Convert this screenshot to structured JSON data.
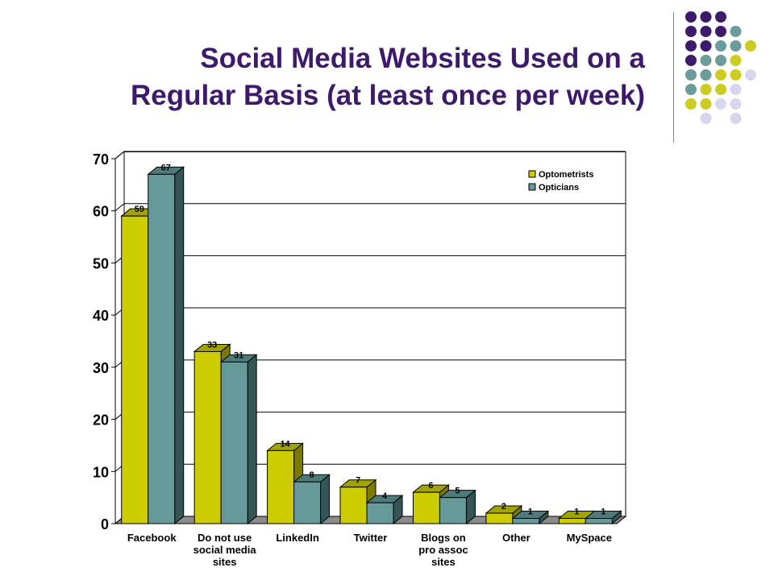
{
  "slide": {
    "title_line1": "Social Media Websites Used on a",
    "title_line2": "Regular Basis (at least once per week)"
  },
  "colors": {
    "title": "#3d1a6b",
    "optometrists_front": "#cccc00",
    "optometrists_top": "#a3a300",
    "optometrists_side": "#7a7a00",
    "opticians_front": "#669999",
    "opticians_top": "#4f7a7a",
    "opticians_side": "#335555",
    "dot_purple": "#3d1a6b",
    "dot_teal": "#6b9b9b",
    "dot_yellow": "#cccc22",
    "dot_lavender": "#d6d6ec"
  },
  "decoration": {
    "dot_grid": [
      [
        "purple",
        "purple",
        "purple",
        null,
        null
      ],
      [
        "purple",
        "purple",
        "purple",
        "teal",
        null
      ],
      [
        "purple",
        "purple",
        "teal",
        "teal",
        "yellow"
      ],
      [
        "purple",
        "teal",
        "teal",
        "yellow",
        null
      ],
      [
        "teal",
        "teal",
        "yellow",
        "yellow",
        "lavender"
      ],
      [
        "teal",
        "yellow",
        "yellow",
        "lavender",
        null
      ],
      [
        "yellow",
        "yellow",
        "lavender",
        "lavender",
        null
      ],
      [
        null,
        "lavender",
        null,
        "lavender",
        null
      ]
    ]
  },
  "chart_data": {
    "type": "bar",
    "title": "",
    "xlabel": "",
    "ylabel": "",
    "ylim": [
      0,
      70
    ],
    "yticks": [
      0,
      10,
      20,
      30,
      40,
      50,
      60,
      70
    ],
    "grid": true,
    "legend_position": "top-right",
    "categories": [
      [
        "Facebook"
      ],
      [
        "Do not use",
        "social media",
        "sites"
      ],
      [
        "LinkedIn"
      ],
      [
        "Twitter"
      ],
      [
        "Blogs on",
        "pro assoc",
        "sites"
      ],
      [
        "Other"
      ],
      [
        "MySpace"
      ]
    ],
    "series": [
      {
        "name": "Optometrists",
        "color": "#cccc00",
        "values": [
          59,
          33,
          14,
          7,
          6,
          2,
          1
        ]
      },
      {
        "name": "Opticians",
        "color": "#669999",
        "values": [
          67,
          31,
          8,
          4,
          5,
          1,
          1
        ]
      }
    ]
  }
}
